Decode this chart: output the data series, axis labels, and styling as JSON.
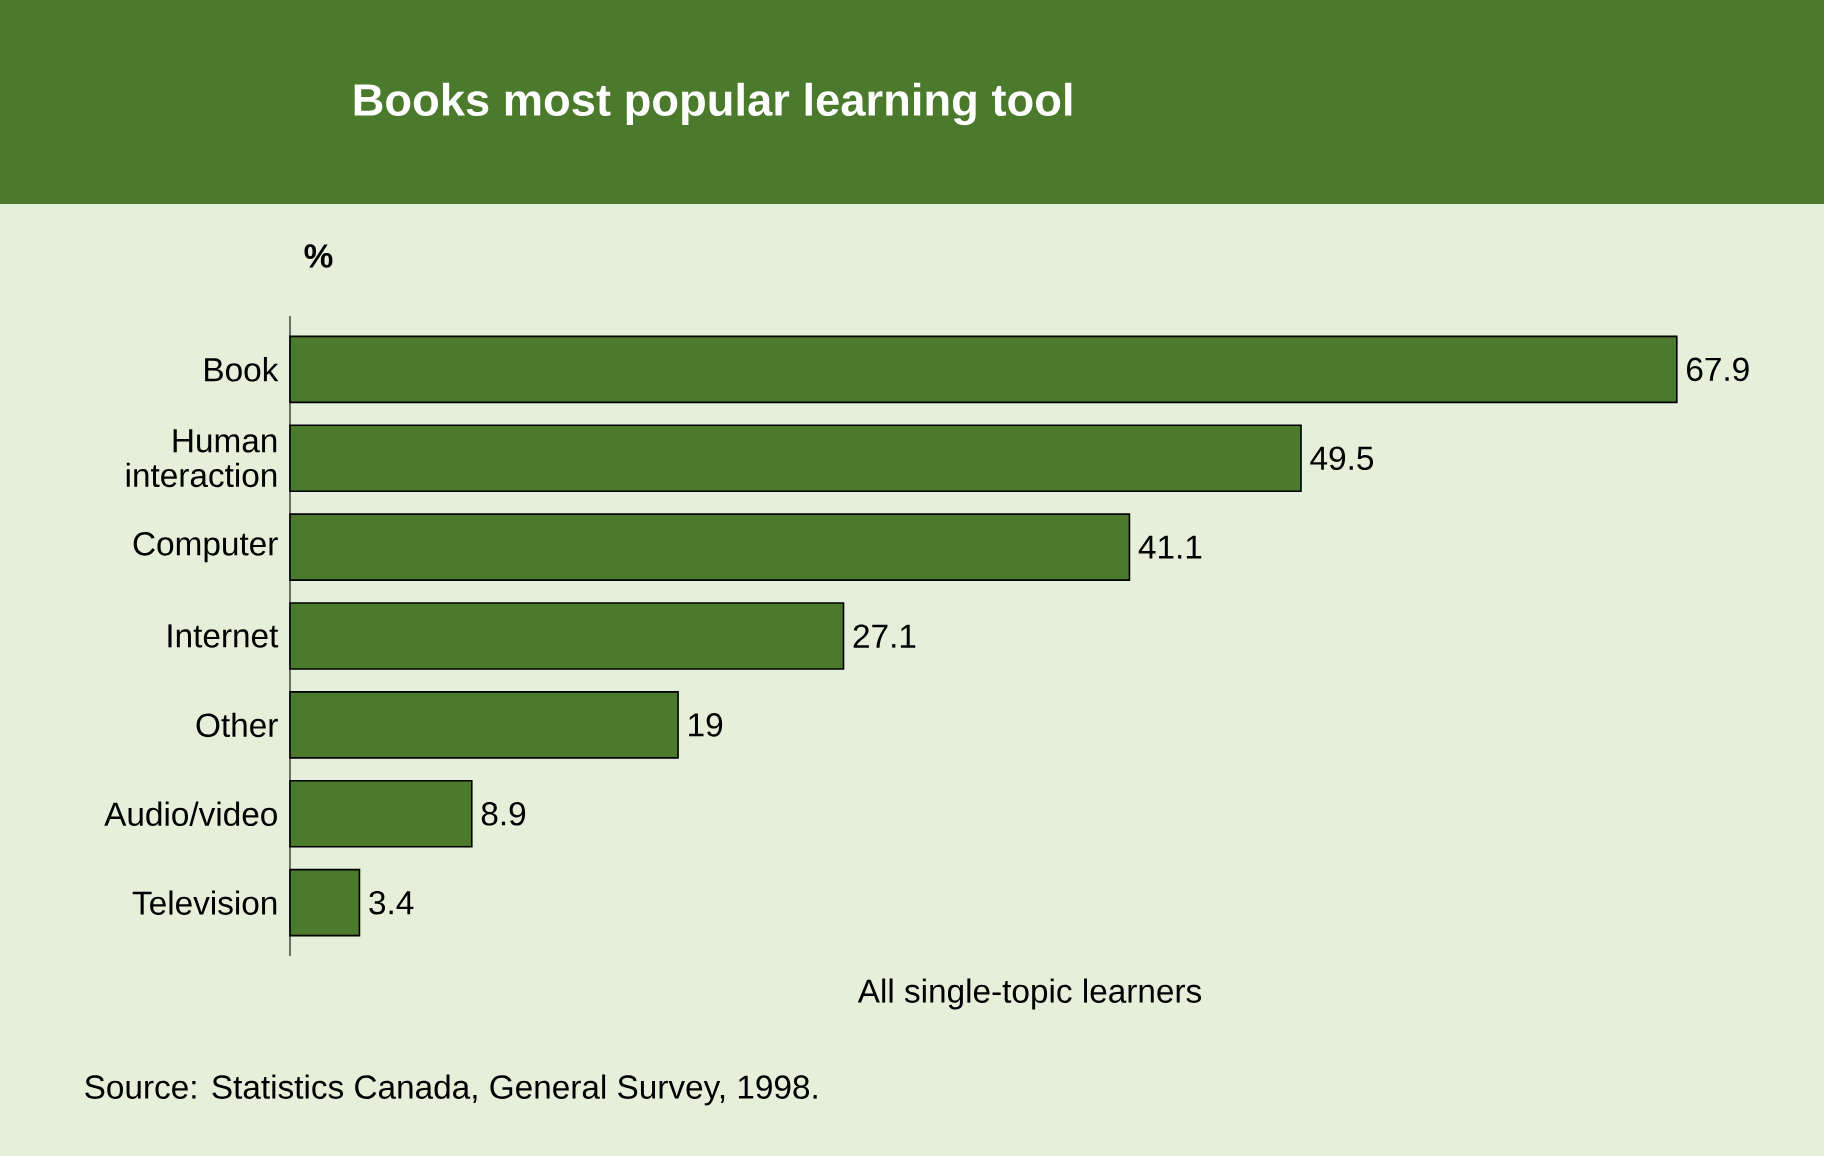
{
  "chart_data": {
    "type": "bar",
    "orientation": "horizontal",
    "title": "Books most popular learning tool",
    "ylabel": "%",
    "xlabel": "All single-topic learners",
    "categories": [
      "Book",
      "Human interaction",
      "Computer",
      "Internet",
      "Other",
      "Audio/video",
      "Television"
    ],
    "values": [
      67.9,
      49.5,
      41.1,
      27.1,
      19,
      8.9,
      3.4
    ],
    "color": "#4b7a2c",
    "data_labels": true,
    "annotations": [
      "Source: Statistics Canada, General Survey, 1998."
    ]
  }
}
